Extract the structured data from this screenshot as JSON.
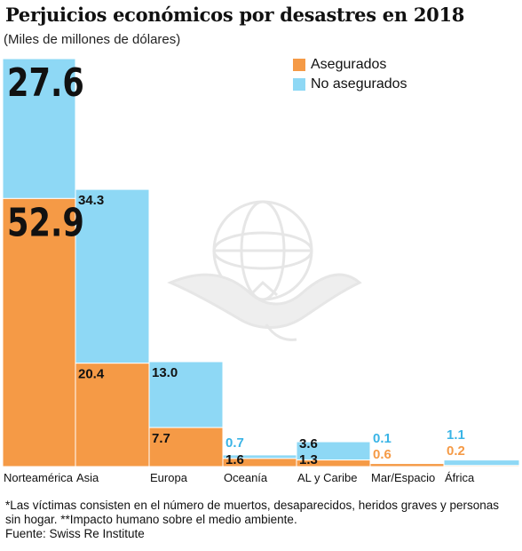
{
  "title": "Perjuicios económicos por desastres en 2018",
  "subtitle": "(Miles de millones de dólares)",
  "legend": [
    {
      "label": "Asegurados",
      "color": "#f59a46"
    },
    {
      "label": "No asegurados",
      "color": "#8ed8f5"
    }
  ],
  "colors": {
    "insured": "#f59a46",
    "uninsured": "#8ed8f5",
    "insured_text": "#f59a46",
    "uninsured_text": "#3ab4e6",
    "inner_text": "#111111",
    "watermark": "#e6e6e6"
  },
  "watermark_icon": "eagle-globe-icon",
  "footnote": "*Las víctimas consisten en el número de muertos, desaparecidos, heridos graves y personas sin hogar.  **Impacto humano sobre el medio ambiente.",
  "source": "Fuente:  Swiss Re Institute",
  "chart_data": {
    "type": "bar",
    "stacked": true,
    "categories": [
      "Norteamérica",
      "Asia",
      "Europa",
      "Oceanía",
      "AL y Caribe",
      "Mar/Espacio",
      "África"
    ],
    "series": [
      {
        "name": "Asegurados",
        "values": [
          52.9,
          20.4,
          7.7,
          1.6,
          1.3,
          0.6,
          0.2
        ]
      },
      {
        "name": "No asegurados",
        "values": [
          27.6,
          34.3,
          13.0,
          0.7,
          3.6,
          0.1,
          1.1
        ]
      }
    ],
    "value_labels": {
      "Asegurados": [
        "52.9",
        "20.4",
        "7.7",
        "1.6",
        "1.3",
        "0.6",
        "0.2"
      ],
      "No asegurados": [
        "27.6",
        "34.3",
        "13.0",
        "0.7",
        "3.6",
        "0.1",
        "1.1"
      ]
    },
    "ylim": [
      0,
      80.5
    ],
    "legend_position": "top-right",
    "grid": false
  }
}
